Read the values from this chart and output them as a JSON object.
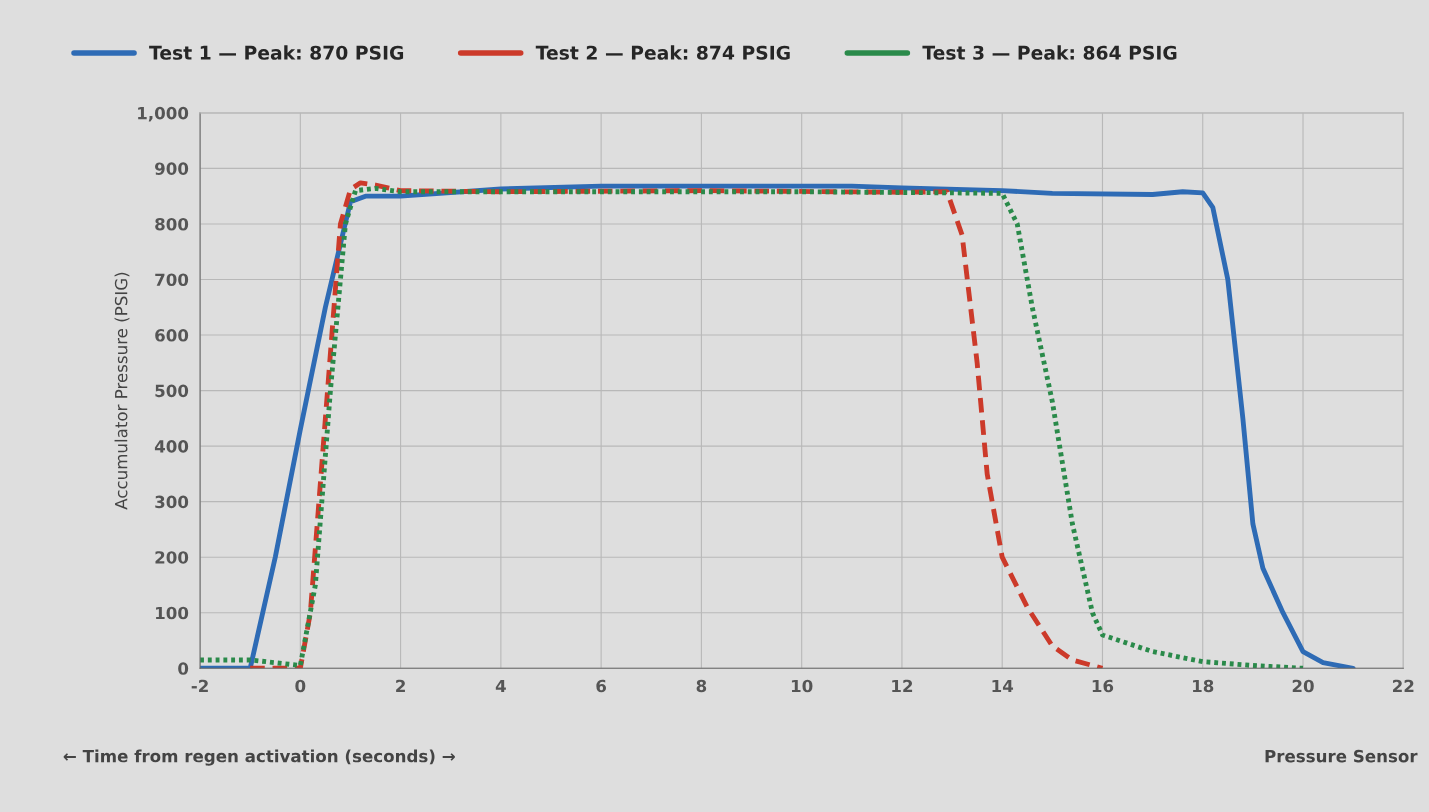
{
  "chart_data": {
    "type": "line",
    "xlabel": "← Time from regen activation (seconds) →",
    "ylabel": "Accumulator Pressure (PSIG)",
    "annotations": [
      "Pressure Sensor"
    ],
    "xlim": [
      -2,
      22
    ],
    "xticks": [
      -2,
      0,
      2,
      4,
      6,
      8,
      10,
      12,
      14,
      16,
      18,
      20,
      22
    ],
    "ylim": [
      0,
      1000
    ],
    "yticks": [
      0,
      100,
      200,
      300,
      400,
      500,
      600,
      700,
      800,
      900,
      {
        "value": 1000,
        "label": "1,000"
      }
    ],
    "grid": true,
    "legend": "top left",
    "series": [
      {
        "name": "Test 1 — Peak: 870 PSIG",
        "color": "#2e6bb5",
        "line_style": "solid",
        "x": [
          -2,
          -1,
          -0.5,
          0,
          0.5,
          1,
          1.3,
          2,
          4,
          6,
          8,
          10,
          11,
          12,
          14,
          15,
          17,
          17.6,
          18,
          18.2,
          18.5,
          18.8,
          19,
          19.2,
          19.6,
          20,
          20.4,
          21
        ],
        "values": [
          0,
          0,
          200,
          430,
          650,
          840,
          850,
          850,
          863,
          868,
          868,
          868,
          868,
          865,
          860,
          855,
          853,
          858,
          856,
          830,
          700,
          450,
          260,
          180,
          100,
          30,
          10,
          0
        ]
      },
      {
        "name": "Test 2 — Peak: 874 PSIG",
        "color": "#cc3a2a",
        "line_style": "dashed",
        "x": [
          -1,
          0,
          0.2,
          0.5,
          0.8,
          1,
          1.2,
          1.5,
          2,
          4,
          8,
          12,
          12.9,
          13.2,
          13.5,
          13.7,
          14,
          14.5,
          15,
          15.4,
          16
        ],
        "values": [
          0,
          0,
          100,
          450,
          800,
          862,
          874,
          870,
          860,
          858,
          860,
          857,
          858,
          780,
          550,
          350,
          200,
          110,
          40,
          15,
          0
        ]
      },
      {
        "name": "Test 3 — Peak: 864 PSIG",
        "color": "#2a8a4a",
        "line_style": "dotted",
        "x": [
          -2,
          -1,
          -0.5,
          0,
          0.3,
          0.6,
          0.9,
          1.1,
          1.5,
          2,
          6,
          10,
          13,
          14,
          14.3,
          14.6,
          15,
          15.4,
          15.8,
          16,
          17,
          18,
          19,
          20
        ],
        "values": [
          15,
          15,
          10,
          5,
          150,
          500,
          800,
          860,
          864,
          858,
          858,
          858,
          856,
          855,
          800,
          650,
          480,
          260,
          100,
          60,
          30,
          12,
          5,
          0
        ]
      }
    ]
  }
}
